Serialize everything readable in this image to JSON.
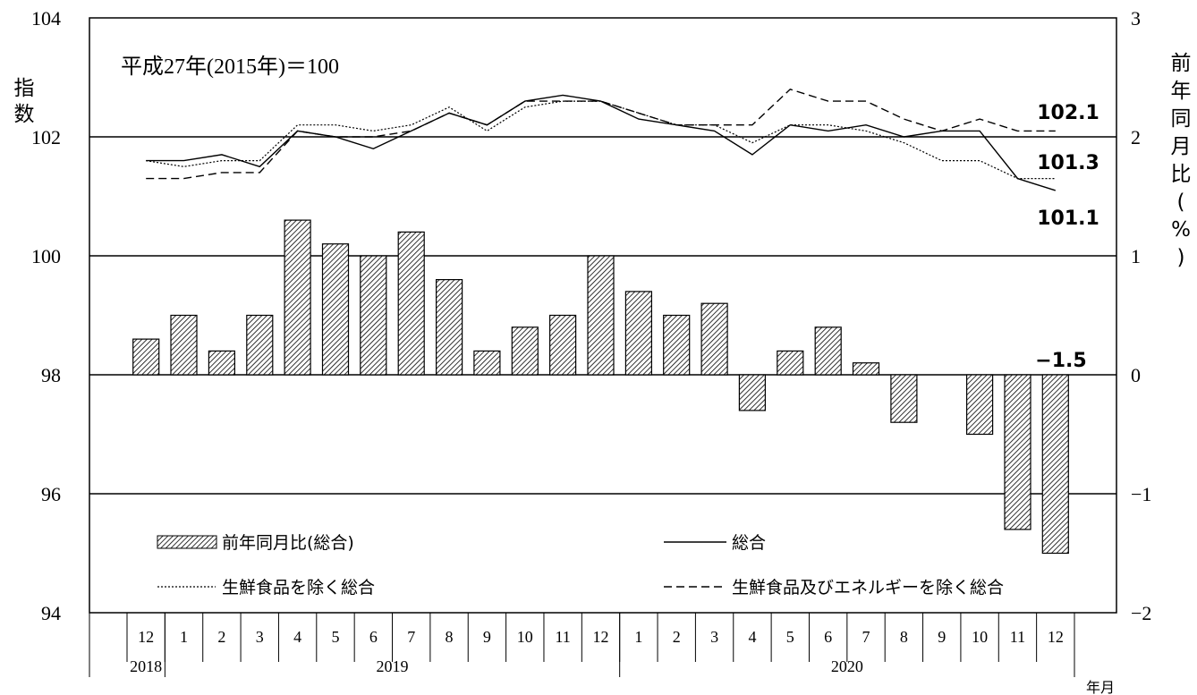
{
  "chart_data": {
    "type": "bar",
    "base_note": "平成27年(2015年)＝100",
    "ylabel_left": "指数",
    "ylabel_right": "前年同月比(%)",
    "xlabel": "年月",
    "ylim_left": [
      94,
      104
    ],
    "ylim_right": [
      -2,
      3
    ],
    "left_ticks": [
      "104",
      "102",
      "100",
      "98",
      "96",
      "94"
    ],
    "right_ticks": [
      "3",
      "2",
      "1",
      "0",
      "−1",
      "−2"
    ],
    "gridlines_right_values": [
      2,
      1,
      0,
      -1
    ],
    "categories": [
      "12",
      "1",
      "2",
      "3",
      "4",
      "5",
      "6",
      "7",
      "8",
      "9",
      "10",
      "11",
      "12",
      "1",
      "2",
      "3",
      "4",
      "5",
      "6",
      "7",
      "8",
      "9",
      "10",
      "11",
      "12"
    ],
    "year_labels": [
      {
        "label": "2018",
        "start": 0,
        "end": 0
      },
      {
        "label": "2019",
        "start": 1,
        "end": 12
      },
      {
        "label": "2020",
        "start": 13,
        "end": 24
      }
    ],
    "series": [
      {
        "name": "前年同月比(総合)",
        "kind": "bar",
        "axis": "right",
        "values": [
          0.3,
          0.5,
          0.2,
          0.5,
          1.3,
          1.1,
          1.0,
          1.2,
          0.8,
          0.2,
          0.4,
          0.5,
          1.0,
          0.7,
          0.5,
          0.6,
          -0.3,
          0.2,
          0.4,
          0.1,
          -0.4,
          null,
          -0.5,
          -1.3,
          -1.5
        ]
      },
      {
        "name": "総合",
        "kind": "line",
        "style": "solid",
        "axis": "left",
        "values": [
          101.6,
          101.6,
          101.7,
          101.5,
          102.1,
          102.0,
          101.8,
          102.1,
          102.4,
          102.2,
          102.6,
          102.7,
          102.6,
          102.3,
          102.2,
          102.1,
          101.7,
          102.2,
          102.1,
          102.2,
          102.0,
          102.1,
          102.1,
          101.3,
          101.1
        ]
      },
      {
        "name": "生鮮食品を除く総合",
        "kind": "line",
        "style": "dotted",
        "axis": "left",
        "values": [
          101.6,
          101.5,
          101.6,
          101.6,
          102.2,
          102.2,
          102.1,
          102.2,
          102.5,
          102.1,
          102.5,
          102.6,
          102.6,
          102.4,
          102.2,
          102.2,
          101.9,
          102.2,
          102.2,
          102.1,
          101.9,
          101.6,
          101.6,
          101.3,
          101.3
        ]
      },
      {
        "name": "生鮮食品及びエネルギーを除く総合",
        "kind": "line",
        "style": "dashed",
        "axis": "left",
        "values": [
          101.3,
          101.3,
          101.4,
          101.4,
          102.1,
          102.0,
          102.0,
          102.1,
          102.4,
          102.2,
          102.6,
          102.6,
          102.6,
          102.4,
          102.2,
          102.2,
          102.2,
          102.8,
          102.6,
          102.6,
          102.3,
          102.1,
          102.3,
          102.1,
          102.1
        ]
      }
    ],
    "annotations": [
      {
        "text": "102.1",
        "series": 3,
        "index": 24
      },
      {
        "text": "101.3",
        "series": 2,
        "index": 24
      },
      {
        "text": "101.1",
        "series": 1,
        "index": 24
      },
      {
        "text": "−1.5",
        "series": 0,
        "index": 24
      }
    ],
    "legend_placement": "bottom"
  }
}
